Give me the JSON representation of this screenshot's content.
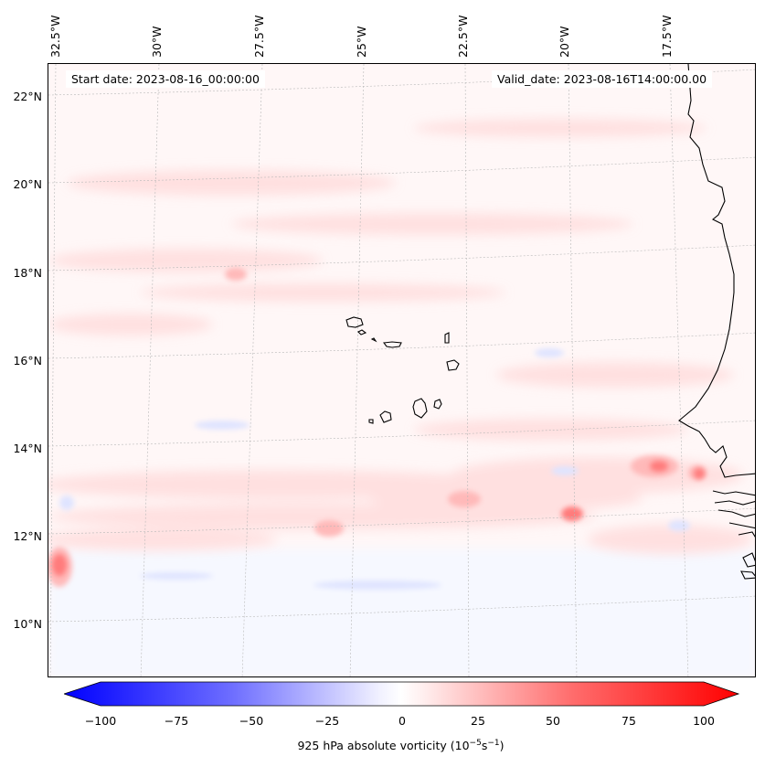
{
  "map": {
    "info": {
      "start": "Start date: 2023-08-16_00:00:00",
      "valid": "Valid_date: 2023-08-16T14:00:00.00"
    },
    "lon_labels": [
      "32.5°W",
      "30°W",
      "27.5°W",
      "25°W",
      "22.5°W",
      "20°W",
      "17.5°W"
    ],
    "lat_labels": [
      "22°N",
      "20°N",
      "18°N",
      "16°N",
      "14°N",
      "12°N",
      "10°N"
    ],
    "colorbar": {
      "ticks": [
        "−100",
        "−75",
        "−50",
        "−25",
        "0",
        "25",
        "50",
        "75",
        "100"
      ],
      "label_text": "925 hPa absolute vorticity (10",
      "label_exp1": "−5",
      "label_mid": "s",
      "label_exp2": "−1",
      "label_end": ")",
      "min": -100,
      "max": 100
    },
    "colors": {
      "negative": "#0000ff",
      "positive": "#ff0000",
      "coast": "#000000"
    }
  }
}
